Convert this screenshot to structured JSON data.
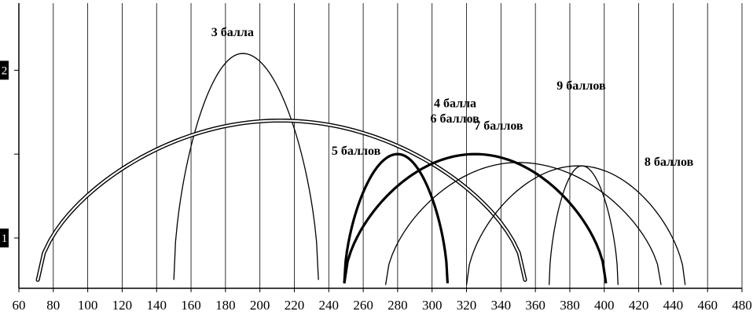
{
  "chart_data": {
    "type": "line",
    "title": "",
    "xlabel": "",
    "ylabel": "",
    "xlim": [
      60,
      480
    ],
    "x_ticks": [
      60,
      80,
      100,
      120,
      140,
      160,
      180,
      200,
      220,
      240,
      260,
      280,
      300,
      320,
      340,
      360,
      380,
      400,
      420,
      440,
      460,
      480
    ],
    "ylim": [
      0.7,
      2.4
    ],
    "y_markers": [
      {
        "label": "2",
        "value": 2
      },
      {
        "label": "1",
        "value": 1
      }
    ],
    "grid": "vertical",
    "series": [
      {
        "name": "3 балла",
        "x_start": 150,
        "x_end": 234,
        "peak_x": 190,
        "peak_y": 2.1,
        "end_y": 0.75,
        "stroke": "thin"
      },
      {
        "name": "4 балла",
        "x_start": 71,
        "x_end": 354,
        "peak_x": 212,
        "peak_y": 1.7,
        "end_y": 0.75,
        "stroke": "double"
      },
      {
        "name": "5 баллов",
        "x_start": 249,
        "x_end": 309,
        "peak_x": 280,
        "peak_y": 1.5,
        "end_y": 0.73,
        "stroke": "bold"
      },
      {
        "name": "6 баллов",
        "x_start": 249,
        "x_end": 401,
        "peak_x": 325,
        "peak_y": 1.5,
        "end_y": 0.73,
        "stroke": "bold"
      },
      {
        "name": "7 баллов",
        "x_start": 273,
        "x_end": 433,
        "peak_x": 350,
        "peak_y": 1.45,
        "end_y": 0.72,
        "stroke": "thin"
      },
      {
        "name": "8 баллов",
        "x_start": 320,
        "x_end": 447,
        "peak_x": 385,
        "peak_y": 1.43,
        "end_y": 0.72,
        "stroke": "thin"
      },
      {
        "name": "9 баллов",
        "x_start": 368,
        "x_end": 408,
        "peak_x": 387,
        "peak_y": 1.43,
        "end_y": 0.72,
        "stroke": "thin"
      }
    ]
  }
}
